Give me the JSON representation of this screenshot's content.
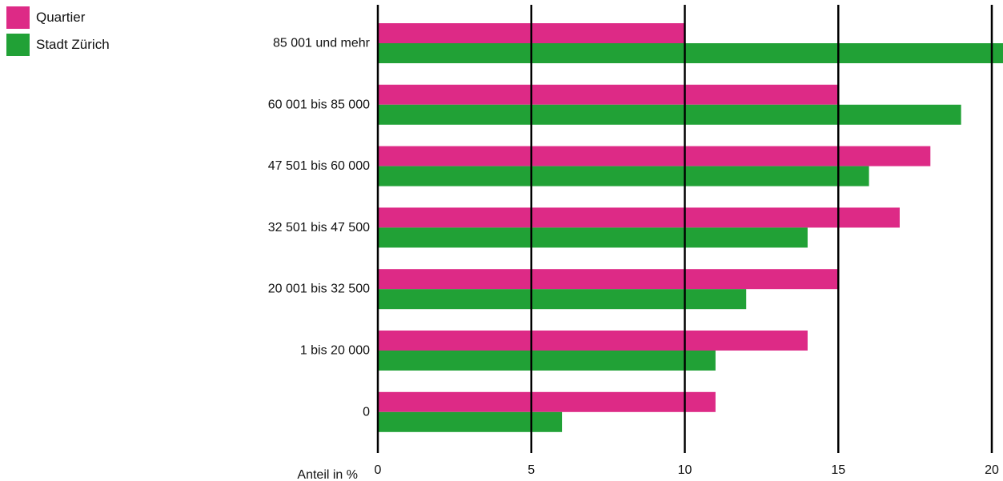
{
  "chart_data": {
    "type": "bar",
    "orientation": "horizontal",
    "categories": [
      "85 001 und mehr",
      "60 001 bis 85 000",
      "47 501 bis 60 000",
      "32 501 bis 47 500",
      "20 001 bis 32 500",
      "1 bis 20 000",
      "0"
    ],
    "series": [
      {
        "name": "Quartier",
        "color": "#DD2A86",
        "values": [
          10,
          15,
          18,
          17,
          15,
          14,
          11
        ]
      },
      {
        "name": "Stadt Zürich",
        "color": "#21A136",
        "values": [
          20.5,
          19,
          16,
          14,
          12,
          11,
          6
        ]
      }
    ],
    "xlabel": "Anteil in %",
    "xlim": [
      0,
      20
    ],
    "xticks": [
      0,
      5,
      10,
      15,
      20
    ],
    "grid": true,
    "legend_position": "top-left"
  }
}
